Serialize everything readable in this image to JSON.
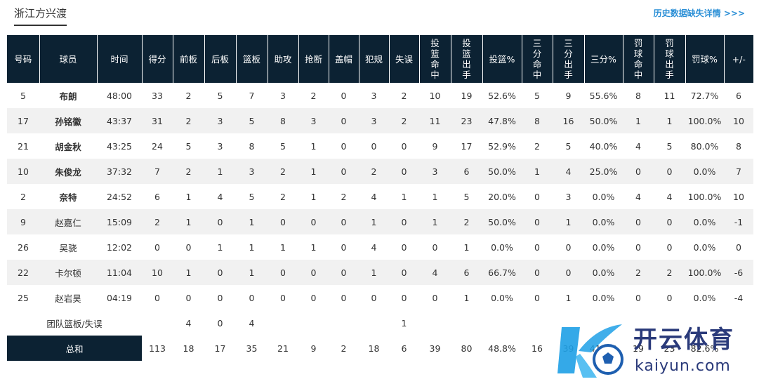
{
  "team_tab": "浙江方兴渡",
  "history_link": "历史数据缺失详情 >>>",
  "columns": [
    {
      "label": "号码"
    },
    {
      "label": "球员"
    },
    {
      "label": "时间"
    },
    {
      "label": "得分"
    },
    {
      "label": "前板"
    },
    {
      "label": "后板"
    },
    {
      "label": "篮板"
    },
    {
      "label": "助攻"
    },
    {
      "label": "抢断"
    },
    {
      "label": "盖帽"
    },
    {
      "label": "犯规"
    },
    {
      "label": "失误"
    },
    {
      "label": "投篮命中"
    },
    {
      "label": "投篮出手"
    },
    {
      "label": "投篮%"
    },
    {
      "label": "三分命中"
    },
    {
      "label": "三分出手"
    },
    {
      "label": "三分%"
    },
    {
      "label": "罚球命中"
    },
    {
      "label": "罚球出手"
    },
    {
      "label": "罚球%"
    },
    {
      "label": "+/-"
    }
  ],
  "players": [
    {
      "no": "5",
      "name": "布朗",
      "starter": true,
      "time": "48:00",
      "pts": "33",
      "oreb": "2",
      "dreb": "5",
      "reb": "7",
      "ast": "3",
      "stl": "2",
      "blk": "0",
      "pf": "3",
      "tov": "2",
      "fgm": "10",
      "fga": "19",
      "fgp": "52.6%",
      "tpm": "5",
      "tpa": "9",
      "tpp": "55.6%",
      "ftm": "8",
      "fta": "11",
      "ftp": "72.7%",
      "pm": "6"
    },
    {
      "no": "17",
      "name": "孙铭徽",
      "starter": true,
      "time": "43:37",
      "pts": "31",
      "oreb": "2",
      "dreb": "3",
      "reb": "5",
      "ast": "8",
      "stl": "3",
      "blk": "0",
      "pf": "3",
      "tov": "2",
      "fgm": "11",
      "fga": "23",
      "fgp": "47.8%",
      "tpm": "8",
      "tpa": "16",
      "tpp": "50.0%",
      "ftm": "1",
      "fta": "1",
      "ftp": "100.0%",
      "pm": "10"
    },
    {
      "no": "21",
      "name": "胡金秋",
      "starter": true,
      "time": "43:25",
      "pts": "24",
      "oreb": "5",
      "dreb": "3",
      "reb": "8",
      "ast": "5",
      "stl": "1",
      "blk": "0",
      "pf": "0",
      "tov": "0",
      "fgm": "9",
      "fga": "17",
      "fgp": "52.9%",
      "tpm": "2",
      "tpa": "5",
      "tpp": "40.0%",
      "ftm": "4",
      "fta": "5",
      "ftp": "80.0%",
      "pm": "8"
    },
    {
      "no": "10",
      "name": "朱俊龙",
      "starter": true,
      "time": "37:32",
      "pts": "7",
      "oreb": "2",
      "dreb": "1",
      "reb": "3",
      "ast": "2",
      "stl": "1",
      "blk": "0",
      "pf": "2",
      "tov": "0",
      "fgm": "3",
      "fga": "6",
      "fgp": "50.0%",
      "tpm": "1",
      "tpa": "4",
      "tpp": "25.0%",
      "ftm": "0",
      "fta": "0",
      "ftp": "0.0%",
      "pm": "7"
    },
    {
      "no": "2",
      "name": "奈特",
      "starter": true,
      "time": "24:52",
      "pts": "6",
      "oreb": "1",
      "dreb": "4",
      "reb": "5",
      "ast": "2",
      "stl": "1",
      "blk": "2",
      "pf": "4",
      "tov": "1",
      "fgm": "1",
      "fga": "5",
      "fgp": "20.0%",
      "tpm": "0",
      "tpa": "3",
      "tpp": "0.0%",
      "ftm": "4",
      "fta": "4",
      "ftp": "100.0%",
      "pm": "10"
    },
    {
      "no": "9",
      "name": "赵嘉仁",
      "starter": false,
      "time": "15:09",
      "pts": "2",
      "oreb": "1",
      "dreb": "0",
      "reb": "1",
      "ast": "0",
      "stl": "0",
      "blk": "0",
      "pf": "1",
      "tov": "0",
      "fgm": "1",
      "fga": "2",
      "fgp": "50.0%",
      "tpm": "0",
      "tpa": "1",
      "tpp": "0.0%",
      "ftm": "0",
      "fta": "0",
      "ftp": "0.0%",
      "pm": "-1"
    },
    {
      "no": "26",
      "name": "吴骁",
      "starter": false,
      "time": "12:02",
      "pts": "0",
      "oreb": "0",
      "dreb": "1",
      "reb": "1",
      "ast": "1",
      "stl": "1",
      "blk": "0",
      "pf": "4",
      "tov": "0",
      "fgm": "0",
      "fga": "1",
      "fgp": "0.0%",
      "tpm": "0",
      "tpa": "0",
      "tpp": "0.0%",
      "ftm": "0",
      "fta": "0",
      "ftp": "0.0%",
      "pm": "0"
    },
    {
      "no": "22",
      "name": "卡尔顿",
      "starter": false,
      "time": "11:04",
      "pts": "10",
      "oreb": "1",
      "dreb": "0",
      "reb": "1",
      "ast": "0",
      "stl": "0",
      "blk": "0",
      "pf": "1",
      "tov": "0",
      "fgm": "4",
      "fga": "6",
      "fgp": "66.7%",
      "tpm": "0",
      "tpa": "0",
      "tpp": "0.0%",
      "ftm": "2",
      "fta": "2",
      "ftp": "100.0%",
      "pm": "-6"
    },
    {
      "no": "25",
      "name": "赵岩昊",
      "starter": false,
      "time": "04:19",
      "pts": "0",
      "oreb": "0",
      "dreb": "0",
      "reb": "0",
      "ast": "0",
      "stl": "0",
      "blk": "0",
      "pf": "0",
      "tov": "0",
      "fgm": "0",
      "fga": "1",
      "fgp": "0.0%",
      "tpm": "0",
      "tpa": "1",
      "tpp": "0.0%",
      "ftm": "0",
      "fta": "0",
      "ftp": "0.0%",
      "pm": "-4"
    }
  ],
  "team_row": {
    "label": "团队篮板/失误",
    "oreb": "4",
    "dreb": "0",
    "reb": "4",
    "tov": "1"
  },
  "totals": {
    "label": "总和",
    "pts": "113",
    "oreb": "18",
    "dreb": "17",
    "reb": "35",
    "ast": "21",
    "stl": "9",
    "blk": "2",
    "pf": "18",
    "tov": "6",
    "fgm": "39",
    "fga": "80",
    "fgp": "48.8%",
    "tpm": "16",
    "tpa": "39",
    "tpp": "41.0%",
    "ftm": "19",
    "fta": "23",
    "ftp": "82.6%"
  },
  "watermark": {
    "cn": "开云体育",
    "en": "kaiyun.com"
  },
  "colors": {
    "header_bg": "#0c2233",
    "stripe": "#f1f1f1",
    "link": "#2b8fd6",
    "watermark": "#2a3a7a"
  }
}
